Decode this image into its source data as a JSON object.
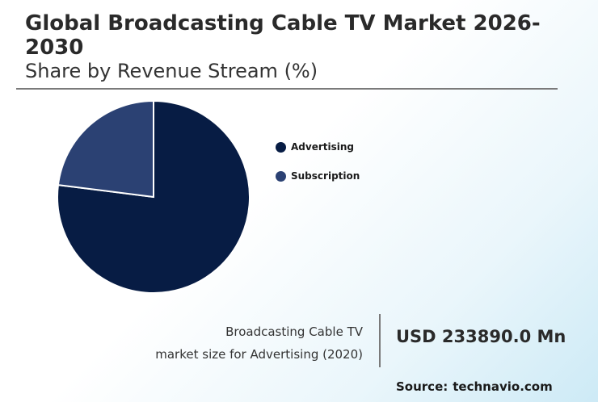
{
  "header": {
    "title": "Global Broadcasting Cable TV Market 2026-2030",
    "subtitle": "Share by Revenue Stream (%)"
  },
  "chart_data": {
    "type": "pie",
    "title": "Global Broadcasting Cable TV Market 2026-2030",
    "subtitle": "Share by Revenue Stream (%)",
    "categories": [
      "Advertising",
      "Subscription"
    ],
    "values": [
      77,
      23
    ],
    "colors": [
      "#071c44",
      "#2b4173"
    ],
    "legend": "right"
  },
  "legend": {
    "items": [
      {
        "label": "Advertising",
        "color": "#071c44"
      },
      {
        "label": "Subscription",
        "color": "#2b4173"
      }
    ]
  },
  "info": {
    "caption_line1": "Broadcasting Cable TV",
    "caption_line2": "market size for Advertising (2020)",
    "value": "USD 233890.0 Mn",
    "source_prefix": "Source:",
    "source_name": "technavio.com"
  }
}
